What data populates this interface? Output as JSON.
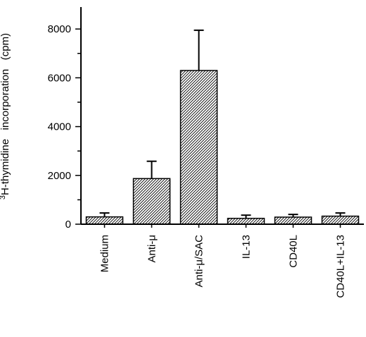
{
  "chart_data": {
    "type": "bar",
    "categories": [
      "Medium",
      "Anti-μ",
      "Anti-μ/SAC",
      "IL-13",
      "CD40L",
      "CD40L+IL-13"
    ],
    "values": [
      300,
      1870,
      6300,
      240,
      290,
      330
    ],
    "error_upper": [
      460,
      2580,
      7950,
      370,
      400,
      460
    ],
    "ylim": [
      0,
      8900
    ],
    "yticks": [
      0,
      2000,
      4000,
      6000,
      8000
    ],
    "ytick_labels": [
      "0",
      "2000",
      "4000",
      "6000",
      "8000"
    ],
    "ylabel_superscript": "3",
    "ylabel_main": "H-thymidine   incorporation   (cpm)",
    "xlabel": "",
    "title": "",
    "grid": false,
    "bar_fill": "diagonal-hatch",
    "bar_color": "#000000"
  }
}
